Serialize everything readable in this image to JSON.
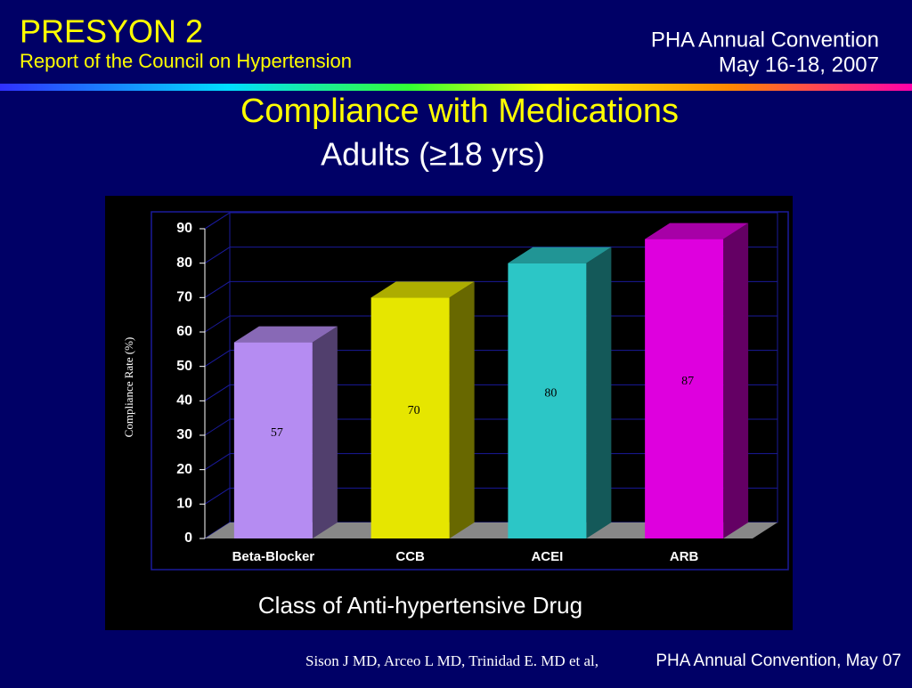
{
  "header": {
    "title": "PRESYON 2",
    "subtitle": "Report of the Council on Hypertension",
    "event": "PHA Annual Convention",
    "date": "May 16-18, 2007"
  },
  "footer": {
    "authors": "Sison J MD, Arceo L MD, Trinidad E. MD et al,",
    "source": "PHA Annual Convention, May 07"
  },
  "chart_data": {
    "type": "bar3d",
    "title": "Compliance with Medications",
    "subtitle": "Adults (≥18 yrs)",
    "x_label": "Class of Anti-hypertensive Drug",
    "y_label": "Compliance Rate (%)",
    "categories": [
      "Beta-Blocker",
      "CCB",
      "ACEI",
      "ARB"
    ],
    "values": [
      57,
      70,
      80,
      87
    ],
    "colors": [
      "#b58cf2",
      "#e6e600",
      "#2cc6c6",
      "#de00de"
    ],
    "ylim": [
      0,
      90
    ],
    "yticks": [
      0,
      10,
      20,
      30,
      40,
      50,
      60,
      70,
      80,
      90
    ],
    "grid": true
  }
}
